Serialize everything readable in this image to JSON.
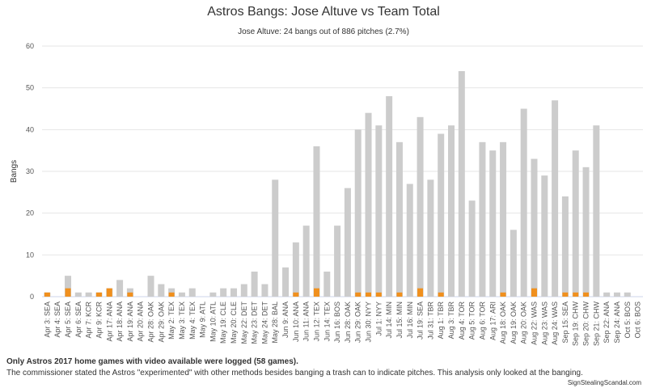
{
  "chart_data": {
    "type": "bar",
    "title": "Astros Bangs: Jose Altuve vs Team Total",
    "subtitle": "Jose Altuve: 24 bangs out of 886 pitches (2.7%)",
    "y_label": "Bangs",
    "categories": [
      "Apr 3: SEA",
      "Apr 4: SEA",
      "Apr 5: SEA",
      "Apr 6: SEA",
      "Apr 7: KCR",
      "Apr 9: KCR",
      "Apr 17: ANA",
      "Apr 18: ANA",
      "Apr 19: ANA",
      "Apr 20: ANA",
      "Apr 28: OAK",
      "Apr 29: OAK",
      "May 2: TEX",
      "May 3: TEX",
      "May 4: TEX",
      "May 9: ATL",
      "May 10: ATL",
      "May 19: CLE",
      "May 20: CLE",
      "May 22: DET",
      "May 23: DET",
      "May 24: DET",
      "May 28: BAL",
      "Jun 9: ANA",
      "Jun 10: ANA",
      "Jun 11: ANA",
      "Jun 12: TEX",
      "Jun 14: TEX",
      "Jun 16: BOS",
      "Jun 28: OAK",
      "Jun 29: OAK",
      "Jun 30: NYY",
      "Jul 1: NYY",
      "Jul 14: MIN",
      "Jul 15: MIN",
      "Jul 16: MIN",
      "Jul 19: SEA",
      "Jul 31: TBR",
      "Aug 1: TBR",
      "Aug 3: TBR",
      "Aug 4: TOR",
      "Aug 5: TOR",
      "Aug 6: TOR",
      "Aug 17: ARI",
      "Aug 18: OAK",
      "Aug 19: OAK",
      "Aug 20: OAK",
      "Aug 22: WAS",
      "Aug 23: WAS",
      "Aug 24: WAS",
      "Sep 15: SEA",
      "Sep 19: CHW",
      "Sep 20: CHW",
      "Sep 21: CHW",
      "Sep 22: ANA",
      "Sep 24: ANA",
      "Oct 5: BOS",
      "Oct 6: BOS"
    ],
    "series": [
      {
        "color": "#cccccc",
        "values": [
          1,
          0,
          5,
          1,
          1,
          1,
          2,
          4,
          2,
          0,
          5,
          3,
          2,
          1,
          2,
          0,
          1,
          2,
          2,
          3,
          6,
          3,
          28,
          7,
          13,
          17,
          36,
          6,
          17,
          26,
          40,
          44,
          41,
          48,
          37,
          27,
          43,
          28,
          39,
          41,
          54,
          23,
          37,
          35,
          37,
          16,
          45,
          33,
          29,
          47,
          24,
          35,
          31,
          41,
          1,
          1,
          1,
          0
        ]
      },
      {
        "color": "#f0901e",
        "values": [
          1,
          0,
          2,
          0,
          0,
          1,
          2,
          0,
          1,
          0,
          0,
          0,
          1,
          0,
          0,
          0,
          0,
          0,
          0,
          0,
          0,
          0,
          0,
          0,
          1,
          0,
          2,
          0,
          0,
          0,
          1,
          1,
          1,
          0,
          1,
          0,
          2,
          0,
          1,
          0,
          0,
          0,
          0,
          0,
          1,
          0,
          0,
          2,
          0,
          0,
          1,
          1,
          1,
          0,
          0,
          0,
          0,
          0
        ]
      }
    ],
    "ylim": [
      0,
      60
    ],
    "yticks": [
      0,
      10,
      20,
      30,
      40,
      50,
      60
    ],
    "grid": true,
    "footnote_bold": "Only Astros 2017 home games with video available were logged (58 games).",
    "footnote": "The commissioner stated the Astros \"experimented\" with other methods besides banging a trash can to indicate pitches. This analysis only looked at the banging.",
    "credits": "SignStealingScandal.com"
  }
}
